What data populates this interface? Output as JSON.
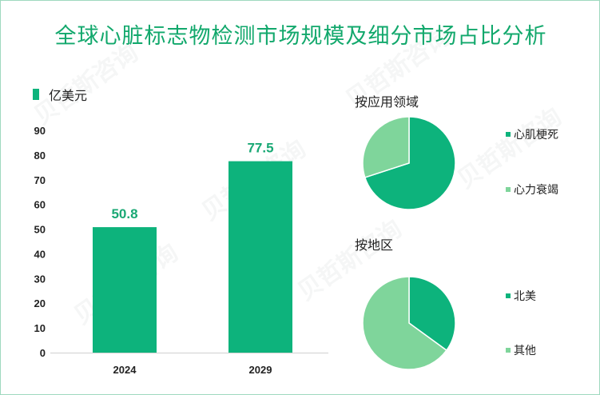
{
  "title": "全球心脏标志物检测市场规模及细分市场占比分析",
  "colors": {
    "bar": "#0db37c",
    "pie_dark": "#0db37c",
    "pie_light": "#7fd59b",
    "title": "#12a86c"
  },
  "chart_data": [
    {
      "type": "bar",
      "legend": "亿美元",
      "categories": [
        "2024",
        "2029"
      ],
      "values": [
        50.8,
        77.5
      ],
      "value_labels": [
        "50.8",
        "77.5"
      ],
      "yticks": [
        "0",
        "10",
        "20",
        "30",
        "40",
        "50",
        "60",
        "70",
        "80",
        "90"
      ],
      "ylim": [
        0,
        90
      ]
    },
    {
      "type": "pie",
      "title": "按应用领域",
      "labels": [
        "心肌梗死",
        "心力衰竭"
      ],
      "values": [
        70,
        30
      ]
    },
    {
      "type": "pie",
      "title": "按地区",
      "labels": [
        "北美",
        "其他"
      ],
      "values": [
        35,
        65
      ]
    }
  ]
}
